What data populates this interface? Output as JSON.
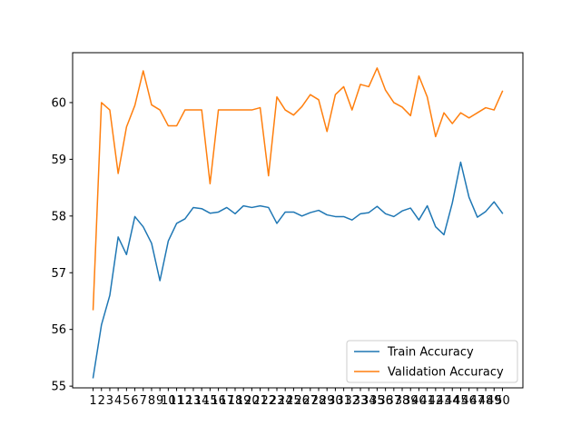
{
  "chart_data": {
    "type": "line",
    "x": [
      1,
      2,
      3,
      4,
      5,
      6,
      7,
      8,
      9,
      10,
      11,
      12,
      13,
      14,
      15,
      16,
      17,
      18,
      19,
      20,
      21,
      22,
      23,
      24,
      25,
      26,
      27,
      28,
      29,
      30,
      31,
      32,
      33,
      34,
      35,
      36,
      37,
      38,
      39,
      40,
      41,
      42,
      43,
      44,
      45,
      46,
      47,
      48,
      49,
      50
    ],
    "series": [
      {
        "name": "Train Accuracy",
        "color": "#1f77b4",
        "values": [
          55.15,
          56.08,
          56.6,
          57.63,
          57.32,
          57.99,
          57.81,
          57.52,
          56.86,
          57.56,
          57.87,
          57.95,
          58.15,
          58.13,
          58.05,
          58.07,
          58.15,
          58.04,
          58.18,
          58.15,
          58.18,
          58.15,
          57.87,
          58.07,
          58.07,
          58.0,
          58.06,
          58.1,
          58.02,
          57.99,
          57.99,
          57.93,
          58.04,
          58.06,
          58.17,
          58.04,
          57.99,
          58.09,
          58.14,
          57.93,
          58.18,
          57.81,
          57.67,
          58.23,
          58.95,
          58.33,
          57.98,
          58.08,
          58.25,
          58.05
        ]
      },
      {
        "name": "Validation Accuracy",
        "color": "#ff7f0e",
        "values": [
          56.35,
          60.0,
          59.87,
          58.75,
          59.57,
          59.95,
          60.56,
          59.96,
          59.87,
          59.59,
          59.59,
          59.87,
          59.87,
          59.87,
          58.57,
          59.87,
          59.87,
          59.87,
          59.87,
          59.87,
          59.91,
          58.71,
          60.1,
          59.87,
          59.78,
          59.93,
          60.14,
          60.05,
          59.49,
          60.14,
          60.28,
          59.87,
          60.32,
          60.28,
          60.61,
          60.22,
          60.0,
          59.92,
          59.77,
          60.47,
          60.1,
          59.4,
          59.82,
          59.63,
          59.82,
          59.73,
          59.82,
          59.91,
          59.87,
          60.2
        ]
      }
    ],
    "y_ticks": [
      55,
      56,
      57,
      58,
      59,
      60
    ],
    "x_ticks": [
      1,
      2,
      3,
      4,
      5,
      6,
      7,
      8,
      9,
      10,
      11,
      12,
      13,
      14,
      15,
      16,
      17,
      18,
      19,
      20,
      21,
      22,
      23,
      24,
      25,
      26,
      27,
      28,
      29,
      30,
      31,
      32,
      33,
      34,
      35,
      36,
      37,
      38,
      39,
      40,
      41,
      42,
      43,
      44,
      45,
      46,
      47,
      48,
      49,
      50
    ],
    "ylim": [
      54.97,
      60.88
    ],
    "xlim": [
      -1.45,
      52.45
    ],
    "title": "",
    "xlabel": "",
    "ylabel": "",
    "legend_position": "lower-right",
    "grid": false
  }
}
